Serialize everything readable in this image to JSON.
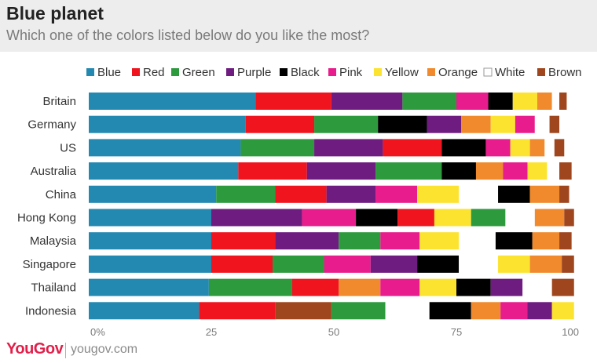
{
  "header": {
    "title": "Blue planet",
    "subtitle": "Which one of the colors listed below do you like the most?"
  },
  "footer": {
    "logo": "YouGov",
    "url": "yougov.com"
  },
  "chart_data": {
    "type": "bar",
    "orientation": "horizontal",
    "stacked": true,
    "title": "Blue planet",
    "subtitle": "Which one of the colors listed below do you like the most?",
    "legend_position": "top",
    "xlim": [
      0,
      100
    ],
    "x_ticks": [
      {
        "value": 0,
        "label": "0%"
      },
      {
        "value": 25,
        "label": "25"
      },
      {
        "value": 50,
        "label": "50"
      },
      {
        "value": 75,
        "label": "75"
      },
      {
        "value": 100,
        "label": "100"
      }
    ],
    "grid": false,
    "legend_order": [
      "Blue",
      "Red",
      "Green",
      "Purple",
      "Black",
      "Pink",
      "Yellow",
      "Orange",
      "White",
      "Brown"
    ],
    "colors": {
      "Blue": "#2489b0",
      "Red": "#f0141e",
      "Green": "#2e9a3e",
      "Purple": "#6e1c80",
      "Black": "#000000",
      "Pink": "#e81c8c",
      "Yellow": "#fce330",
      "Orange": "#f08a2c",
      "White": "#ffffff",
      "Brown": "#a0461e"
    },
    "categories": [
      {
        "name": "Britain",
        "segments": [
          {
            "color": "Blue",
            "value": 34
          },
          {
            "color": "Red",
            "value": 15.5
          },
          {
            "color": "Purple",
            "value": 14.5
          },
          {
            "color": "Green",
            "value": 11
          },
          {
            "color": "Pink",
            "value": 6.5
          },
          {
            "color": "Black",
            "value": 5
          },
          {
            "color": "Yellow",
            "value": 5
          },
          {
            "color": "Orange",
            "value": 3
          },
          {
            "color": "White",
            "value": 1.5
          },
          {
            "color": "Brown",
            "value": 1.5
          }
        ]
      },
      {
        "name": "Germany",
        "segments": [
          {
            "color": "Blue",
            "value": 32
          },
          {
            "color": "Red",
            "value": 14
          },
          {
            "color": "Green",
            "value": 13
          },
          {
            "color": "Black",
            "value": 10
          },
          {
            "color": "Purple",
            "value": 7
          },
          {
            "color": "Orange",
            "value": 6
          },
          {
            "color": "Yellow",
            "value": 5
          },
          {
            "color": "Pink",
            "value": 4
          },
          {
            "color": "White",
            "value": 3
          },
          {
            "color": "Brown",
            "value": 2
          }
        ]
      },
      {
        "name": "US",
        "segments": [
          {
            "color": "Blue",
            "value": 31
          },
          {
            "color": "Green",
            "value": 15
          },
          {
            "color": "Purple",
            "value": 14
          },
          {
            "color": "Red",
            "value": 12
          },
          {
            "color": "Black",
            "value": 9
          },
          {
            "color": "Pink",
            "value": 5
          },
          {
            "color": "Yellow",
            "value": 4
          },
          {
            "color": "Orange",
            "value": 3
          },
          {
            "color": "White",
            "value": 2
          },
          {
            "color": "Brown",
            "value": 2
          }
        ]
      },
      {
        "name": "Australia",
        "segments": [
          {
            "color": "Blue",
            "value": 30.5
          },
          {
            "color": "Red",
            "value": 14
          },
          {
            "color": "Purple",
            "value": 14
          },
          {
            "color": "Green",
            "value": 13.5
          },
          {
            "color": "Black",
            "value": 7
          },
          {
            "color": "Orange",
            "value": 5.5
          },
          {
            "color": "Pink",
            "value": 5
          },
          {
            "color": "Yellow",
            "value": 4
          },
          {
            "color": "White",
            "value": 2.5
          },
          {
            "color": "Brown",
            "value": 2.5
          }
        ]
      },
      {
        "name": "China",
        "segments": [
          {
            "color": "Blue",
            "value": 26
          },
          {
            "color": "Green",
            "value": 12
          },
          {
            "color": "Red",
            "value": 10.5
          },
          {
            "color": "Purple",
            "value": 10
          },
          {
            "color": "Pink",
            "value": 8.5
          },
          {
            "color": "Yellow",
            "value": 8.5
          },
          {
            "color": "White",
            "value": 8
          },
          {
            "color": "Black",
            "value": 6.5
          },
          {
            "color": "Orange",
            "value": 6
          },
          {
            "color": "Brown",
            "value": 2
          }
        ]
      },
      {
        "name": "Hong Kong",
        "segments": [
          {
            "color": "Blue",
            "value": 25
          },
          {
            "color": "Purple",
            "value": 18.5
          },
          {
            "color": "Pink",
            "value": 11
          },
          {
            "color": "Black",
            "value": 8.5
          },
          {
            "color": "Red",
            "value": 7.5
          },
          {
            "color": "Yellow",
            "value": 7.5
          },
          {
            "color": "Green",
            "value": 7
          },
          {
            "color": "White",
            "value": 6
          },
          {
            "color": "Orange",
            "value": 6
          },
          {
            "color": "Brown",
            "value": 2
          }
        ]
      },
      {
        "name": "Malaysia",
        "segments": [
          {
            "color": "Blue",
            "value": 25
          },
          {
            "color": "Red",
            "value": 13
          },
          {
            "color": "Purple",
            "value": 13
          },
          {
            "color": "Green",
            "value": 8.5
          },
          {
            "color": "Pink",
            "value": 8
          },
          {
            "color": "Yellow",
            "value": 8
          },
          {
            "color": "White",
            "value": 7.5
          },
          {
            "color": "Black",
            "value": 7.5
          },
          {
            "color": "Orange",
            "value": 5.5
          },
          {
            "color": "Brown",
            "value": 2.5
          }
        ]
      },
      {
        "name": "Singapore",
        "segments": [
          {
            "color": "Blue",
            "value": 25
          },
          {
            "color": "Red",
            "value": 12.5
          },
          {
            "color": "Green",
            "value": 10.5
          },
          {
            "color": "Pink",
            "value": 9.5
          },
          {
            "color": "Purple",
            "value": 9.5
          },
          {
            "color": "Black",
            "value": 8.5
          },
          {
            "color": "White",
            "value": 8
          },
          {
            "color": "Yellow",
            "value": 6.5
          },
          {
            "color": "Orange",
            "value": 6.5
          },
          {
            "color": "Brown",
            "value": 2.5
          }
        ]
      },
      {
        "name": "Thailand",
        "segments": [
          {
            "color": "Blue",
            "value": 24.5
          },
          {
            "color": "Green",
            "value": 17
          },
          {
            "color": "Red",
            "value": 9.5
          },
          {
            "color": "Orange",
            "value": 8.5
          },
          {
            "color": "Pink",
            "value": 8
          },
          {
            "color": "Yellow",
            "value": 7.5
          },
          {
            "color": "Black",
            "value": 7
          },
          {
            "color": "Purple",
            "value": 6.5
          },
          {
            "color": "White",
            "value": 6
          },
          {
            "color": "Brown",
            "value": 4.5
          }
        ]
      },
      {
        "name": "Indonesia",
        "segments": [
          {
            "color": "Blue",
            "value": 22.5
          },
          {
            "color": "Red",
            "value": 15.5
          },
          {
            "color": "Brown",
            "value": 11.5
          },
          {
            "color": "Green",
            "value": 11
          },
          {
            "color": "White",
            "value": 9
          },
          {
            "color": "Black",
            "value": 8.5
          },
          {
            "color": "Orange",
            "value": 6
          },
          {
            "color": "Pink",
            "value": 5.5
          },
          {
            "color": "Purple",
            "value": 5
          },
          {
            "color": "Yellow",
            "value": 4.5
          }
        ]
      }
    ]
  }
}
